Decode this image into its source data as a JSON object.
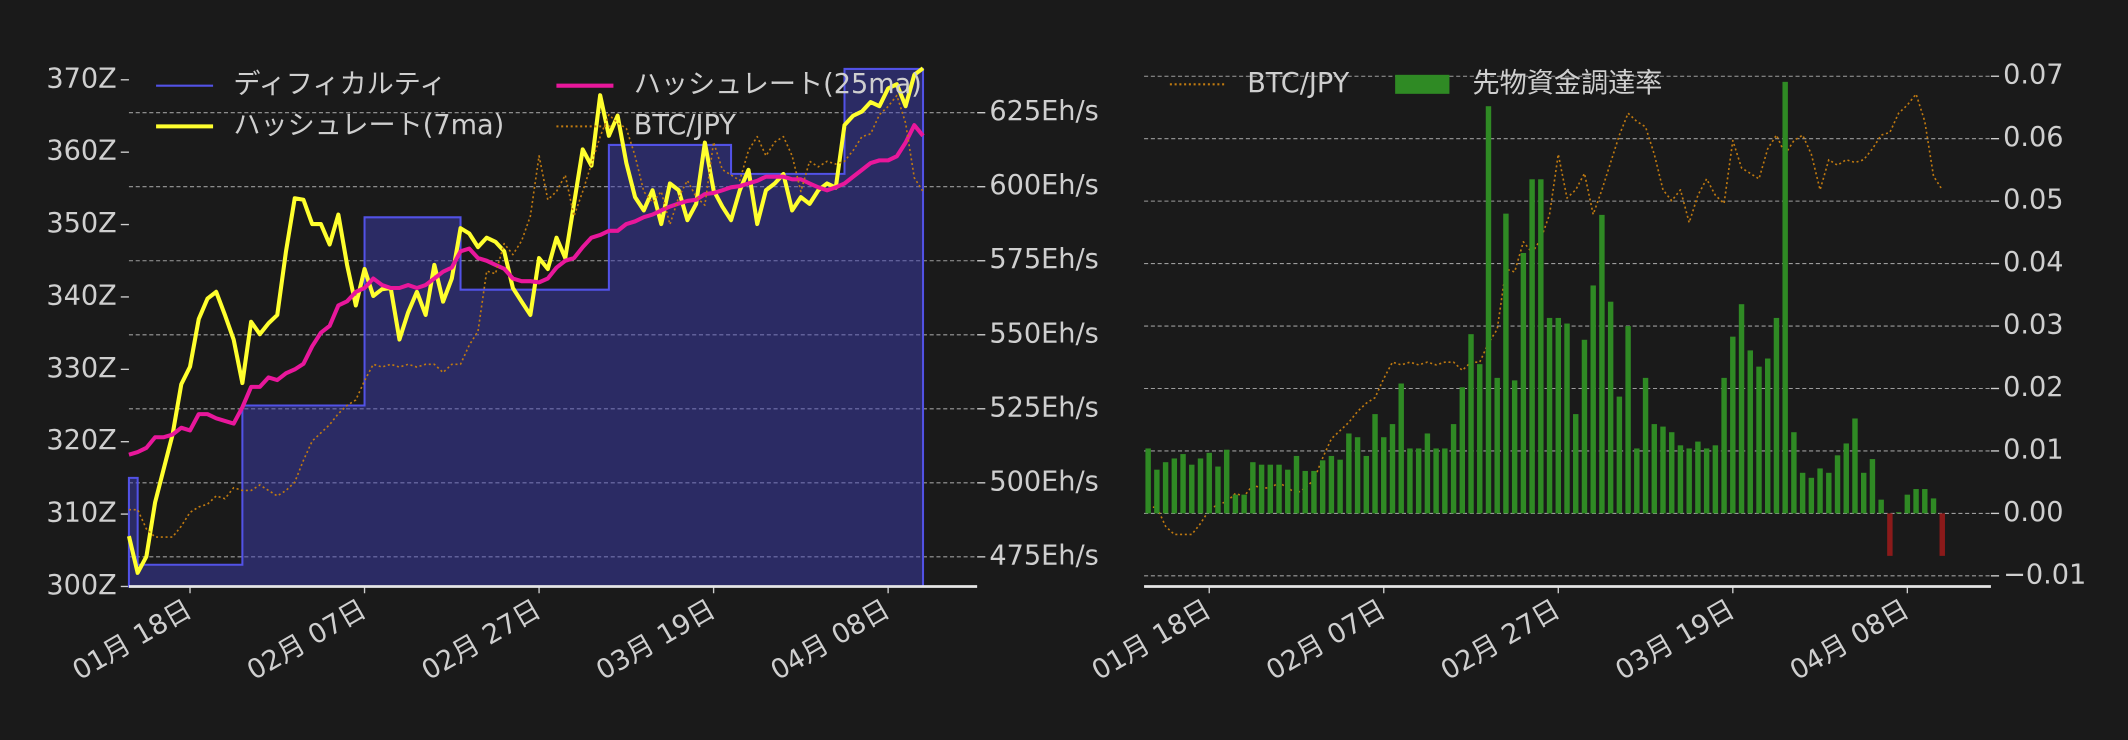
{
  "chart_data": [
    {
      "type": "line",
      "x": [
        "01月 11日",
        "01月 12日",
        "01月 13日",
        "01月 14日",
        "01月 15日",
        "01月 16日",
        "01月 17日",
        "01月 18日",
        "01月 19日",
        "01月 20日",
        "01月 21日",
        "01月 22日",
        "01月 23日",
        "01月 24日",
        "01月 25日",
        "01月 26日",
        "01月 27日",
        "01月 28日",
        "01月 29日",
        "01月 30日",
        "01月 31日",
        "02月 01日",
        "02月 02日",
        "02月 03日",
        "02月 04日",
        "02月 05日",
        "02月 06日",
        "02月 07日",
        "02月 08日",
        "02月 09日",
        "02月 10日",
        "02月 11日",
        "02月 12日",
        "02月 13日",
        "02月 14日",
        "02月 15日",
        "02月 16日",
        "02月 17日",
        "02月 18日",
        "02月 19日",
        "02月 20日",
        "02月 21日",
        "02月 22日",
        "02月 23日",
        "02月 24日",
        "02月 25日",
        "02月 26日",
        "02月 27日",
        "02月 28日",
        "03月 01日",
        "03月 02日",
        "03月 03日",
        "03月 04日",
        "03月 05日",
        "03月 06日",
        "03月 07日",
        "03月 08日",
        "03月 09日",
        "03月 10日",
        "03月 11日",
        "03月 12日",
        "03月 13日",
        "03月 14日",
        "03月 15日",
        "03月 16日",
        "03月 17日",
        "03月 18日",
        "03月 19日",
        "03月 20日",
        "03月 21日",
        "03月 22日",
        "03月 23日",
        "03月 24日",
        "03月 25日",
        "03月 26日",
        "03月 27日",
        "03月 28日",
        "03月 29日",
        "03月 30日",
        "03月 31日",
        "04月 01日",
        "04月 02日",
        "04月 03日",
        "04月 04日",
        "04月 05日",
        "04月 06日",
        "04月 07日",
        "04月 08日",
        "04月 09日",
        "04月 10日",
        "04月 11日",
        "04月 12日"
      ],
      "xticks": [
        "01月 18日",
        "02月 07日",
        "02月 27日",
        "03月 19日",
        "04月 08日"
      ],
      "ylim": [
        300,
        372
      ],
      "yticks": [
        {
          "value": 300,
          "label": "300Z"
        },
        {
          "value": 310,
          "label": "310Z"
        },
        {
          "value": 320,
          "label": "320Z"
        },
        {
          "value": 330,
          "label": "330Z"
        },
        {
          "value": 340,
          "label": "340Z"
        },
        {
          "value": 350,
          "label": "350Z"
        },
        {
          "value": 360,
          "label": "360Z"
        },
        {
          "value": 370,
          "label": "370Z"
        }
      ],
      "y_axis_side": "left",
      "y2lim": [
        465,
        641
      ],
      "y2ticks": [
        {
          "value": 475,
          "label": "475Eh/s"
        },
        {
          "value": 500,
          "label": "500Eh/s"
        },
        {
          "value": 525,
          "label": "525Eh/s"
        },
        {
          "value": 550,
          "label": "550Eh/s"
        },
        {
          "value": 575,
          "label": "575Eh/s"
        },
        {
          "value": 600,
          "label": "600Eh/s"
        },
        {
          "value": 625,
          "label": "625Eh/s"
        }
      ],
      "y3lim": [
        2100000,
        4000000
      ],
      "grid": "y2",
      "legend": "upper left",
      "legend_columns": 2,
      "series": [
        {
          "name": "ディフィカルティ",
          "mark": "step-area",
          "color": "#5252e6",
          "fill": "rgba(64,64,190,0.45)",
          "values": [
            315,
            303,
            303,
            303,
            303,
            303,
            303,
            303,
            303,
            303,
            303,
            303,
            303,
            325,
            325,
            325,
            325,
            325,
            325,
            325,
            325,
            325,
            325,
            325,
            325,
            325,
            325,
            351,
            351,
            351,
            351,
            351,
            351,
            351,
            351,
            351,
            351,
            351,
            341,
            341,
            341,
            341,
            341,
            341,
            341,
            341,
            341,
            341,
            341,
            341,
            341,
            341,
            341,
            341,
            341,
            361,
            361,
            361,
            361,
            361,
            361,
            361,
            361,
            361,
            361,
            361,
            361,
            361,
            361,
            357,
            357,
            357,
            357,
            357,
            357,
            357,
            357,
            357,
            357,
            357,
            357,
            357,
            371.5,
            371.5,
            371.5,
            371.5,
            371.5,
            371.5,
            371.5,
            371.5,
            371.5,
            371.5
          ]
        },
        {
          "name": "ハッシュレート(7ma)",
          "mark": "line",
          "axis": "y2",
          "color": "#ffff2e",
          "values": [
            482.0,
            469.6,
            475.1,
            493.4,
            504.9,
            516.3,
            533.3,
            539.2,
            555.3,
            562.2,
            564.5,
            556.7,
            548.4,
            533.7,
            554.4,
            550.2,
            553.9,
            556.7,
            578.2,
            596.1,
            595.6,
            587.4,
            587.4,
            580.5,
            590.6,
            573.6,
            559.9,
            572.2,
            563.1,
            565.4,
            565.8,
            548.4,
            557.6,
            564.5,
            556.7,
            573.6,
            561.2,
            569.0,
            586.0,
            584.2,
            579.6,
            582.8,
            581.4,
            578.2,
            565.8,
            561.2,
            556.7,
            575.9,
            572.2,
            582.8,
            575.9,
            594.2,
            612.6,
            607.1,
            630.9,
            617.2,
            624.0,
            608.0,
            596.5,
            592.0,
            598.8,
            587.4,
            601.1,
            598.8,
            588.7,
            594.2,
            614.9,
            598.8,
            593.3,
            588.7,
            598.8,
            605.7,
            587.4,
            598.8,
            601.1,
            604.3,
            592.0,
            596.5,
            594.2,
            598.8,
            601.1,
            599.7,
            620.8,
            624.0,
            625.4,
            628.6,
            627.2,
            633.2,
            634.6,
            627.2,
            637.8,
            640
          ]
        },
        {
          "name": "ハッシュレート(25ma)",
          "mark": "line",
          "axis": "y2",
          "color": "#e8179b",
          "values": [
            509.5,
            510.4,
            511.8,
            515.4,
            515.4,
            516.3,
            518.6,
            517.7,
            523.2,
            523.2,
            521.8,
            520.9,
            520.0,
            525.5,
            532.4,
            532.4,
            535.6,
            534.7,
            537.0,
            538.3,
            540.2,
            546.1,
            550.7,
            553.0,
            559.9,
            561.3,
            564.5,
            565.8,
            569.0,
            566.8,
            565.8,
            565.8,
            566.8,
            565.8,
            566.8,
            569.0,
            571.3,
            572.7,
            578.2,
            579.1,
            575.9,
            575.0,
            573.6,
            572.3,
            569.0,
            568.1,
            568.1,
            567.7,
            569.0,
            572.7,
            575.0,
            575.9,
            579.6,
            582.8,
            583.7,
            585.1,
            585.1,
            587.4,
            588.3,
            589.7,
            590.6,
            592.0,
            593.3,
            594.3,
            595.2,
            595.6,
            597.5,
            597.9,
            598.8,
            599.8,
            600.2,
            601.1,
            602.0,
            603.4,
            603.4,
            603.4,
            602.5,
            602.5,
            601.1,
            599.8,
            598.8,
            599.8,
            601.1,
            603.4,
            605.7,
            608.0,
            608.9,
            608.9,
            610.3,
            614.9,
            620.8,
            617.2
          ]
        },
        {
          "name": "BTC/JPY",
          "mark": "line",
          "dashed": true,
          "axis": "y3",
          "color": "#c07a10",
          "values": [
            2380000,
            2380000,
            2310000,
            2280000,
            2280000,
            2280000,
            2320000,
            2370000,
            2390000,
            2400000,
            2430000,
            2420000,
            2460000,
            2450000,
            2450000,
            2470000,
            2450000,
            2430000,
            2450000,
            2480000,
            2560000,
            2630000,
            2660000,
            2690000,
            2730000,
            2760000,
            2780000,
            2850000,
            2910000,
            2900000,
            2910000,
            2900000,
            2910000,
            2900000,
            2910000,
            2910000,
            2880000,
            2910000,
            2910000,
            2980000,
            3030000,
            3250000,
            3240000,
            3350000,
            3310000,
            3360000,
            3450000,
            3670000,
            3510000,
            3540000,
            3600000,
            3450000,
            3540000,
            3640000,
            3740000,
            3820000,
            3790000,
            3770000,
            3670000,
            3540000,
            3500000,
            3540000,
            3420000,
            3520000,
            3580000,
            3520000,
            3490000,
            3720000,
            3620000,
            3600000,
            3580000,
            3690000,
            3740000,
            3670000,
            3720000,
            3740000,
            3670000,
            3540000,
            3650000,
            3630000,
            3650000,
            3640000,
            3650000,
            3690000,
            3740000,
            3750000,
            3820000,
            3850000,
            3890000,
            3790000,
            3590000,
            3540000
          ]
        }
      ]
    },
    {
      "type": "bar",
      "x": [
        "01月 11日",
        "01月 12日",
        "01月 13日",
        "01月 14日",
        "01月 15日",
        "01月 16日",
        "01月 17日",
        "01月 18日",
        "01月 19日",
        "01月 20日",
        "01月 21日",
        "01月 22日",
        "01月 23日",
        "01月 24日",
        "01月 25日",
        "01月 26日",
        "01月 27日",
        "01月 28日",
        "01月 29日",
        "01月 30日",
        "01月 31日",
        "02月 01日",
        "02月 02日",
        "02月 03日",
        "02月 04日",
        "02月 05日",
        "02月 06日",
        "02月 07日",
        "02月 08日",
        "02月 09日",
        "02月 10日",
        "02月 11日",
        "02月 12日",
        "02月 13日",
        "02月 14日",
        "02月 15日",
        "02月 16日",
        "02月 17日",
        "02月 18日",
        "02月 19日",
        "02月 20日",
        "02月 21日",
        "02月 22日",
        "02月 23日",
        "02月 24日",
        "02月 25日",
        "02月 26日",
        "02月 27日",
        "02月 28日",
        "03月 01日",
        "03月 02日",
        "03月 03日",
        "03月 04日",
        "03月 05日",
        "03月 06日",
        "03月 07日",
        "03月 08日",
        "03月 09日",
        "03月 10日",
        "03月 11日",
        "03月 12日",
        "03月 13日",
        "03月 14日",
        "03月 15日",
        "03月 16日",
        "03月 17日",
        "03月 18日",
        "03月 19日",
        "03月 20日",
        "03月 21日",
        "03月 22日",
        "03月 23日",
        "03月 24日",
        "03月 25日",
        "03月 26日",
        "03月 27日",
        "03月 28日",
        "03月 29日",
        "03月 30日",
        "03月 31日",
        "04月 01日",
        "04月 02日",
        "04月 03日",
        "04月 04日",
        "04月 05日",
        "04月 06日",
        "04月 07日",
        "04月 08日",
        "04月 09日",
        "04月 10日",
        "04月 11日",
        "04月 12日"
      ],
      "xticks": [
        "01月 18日",
        "02月 07日",
        "02月 27日",
        "03月 19日",
        "04月 08日"
      ],
      "ylim": [
        -0.0117,
        0.0724
      ],
      "yticks": [
        {
          "value": -0.01,
          "label": "−0.01"
        },
        {
          "value": 0,
          "label": "0.00"
        },
        0.01,
        0.02,
        0.03,
        0.04,
        0.05,
        0.06,
        0.07
      ],
      "y_axis_side": "right",
      "y2lim": [
        2090000,
        4010000
      ],
      "grid": "y",
      "legend": "upper left",
      "legend_columns": 2,
      "series": [
        {
          "name": "BTC/JPY",
          "mark": "line",
          "dashed": true,
          "axis": "y2",
          "color": "#c07a10",
          "values": [
            2380000,
            2380000,
            2310000,
            2280000,
            2280000,
            2280000,
            2320000,
            2370000,
            2390000,
            2400000,
            2430000,
            2420000,
            2460000,
            2450000,
            2450000,
            2470000,
            2450000,
            2430000,
            2450000,
            2480000,
            2560000,
            2630000,
            2660000,
            2690000,
            2730000,
            2760000,
            2780000,
            2850000,
            2910000,
            2900000,
            2910000,
            2900000,
            2910000,
            2900000,
            2910000,
            2910000,
            2880000,
            2910000,
            2910000,
            2980000,
            3030000,
            3250000,
            3240000,
            3350000,
            3310000,
            3360000,
            3450000,
            3670000,
            3510000,
            3540000,
            3600000,
            3450000,
            3540000,
            3640000,
            3740000,
            3820000,
            3790000,
            3770000,
            3670000,
            3540000,
            3500000,
            3540000,
            3420000,
            3520000,
            3580000,
            3520000,
            3490000,
            3720000,
            3620000,
            3600000,
            3580000,
            3690000,
            3740000,
            3670000,
            3720000,
            3740000,
            3670000,
            3540000,
            3650000,
            3630000,
            3650000,
            3640000,
            3650000,
            3690000,
            3740000,
            3750000,
            3820000,
            3850000,
            3890000,
            3790000,
            3590000,
            3540000
          ]
        },
        {
          "name": "先物資金調達率",
          "mark": "bar",
          "color": "#2f8a24",
          "negative_color": "#8b1a1a",
          "values": [
            0.0104,
            0.007,
            0.0082,
            0.0088,
            0.0095,
            0.0078,
            0.0088,
            0.0097,
            0.0075,
            0.0102,
            0.003,
            0.003,
            0.0082,
            0.0078,
            0.0078,
            0.0078,
            0.007,
            0.0092,
            0.0068,
            0.0068,
            0.0085,
            0.0092,
            0.0086,
            0.0128,
            0.0122,
            0.0092,
            0.0159,
            0.0122,
            0.0143,
            0.0208,
            0.0104,
            0.0104,
            0.0128,
            0.0104,
            0.0104,
            0.0143,
            0.0202,
            0.0287,
            0.0239,
            0.0652,
            0.0217,
            0.048,
            0.0213,
            0.0417,
            0.0535,
            0.0535,
            0.0313,
            0.0313,
            0.0304,
            0.0159,
            0.0278,
            0.0365,
            0.0478,
            0.0339,
            0.0187,
            0.03,
            0.0104,
            0.0217,
            0.0143,
            0.0139,
            0.013,
            0.0109,
            0.0104,
            0.0115,
            0.0104,
            0.0109,
            0.0217,
            0.0283,
            0.0335,
            0.0261,
            0.0235,
            0.0248,
            0.0313,
            0.0691,
            0.013,
            0.0065,
            0.0057,
            0.0072,
            0.0065,
            0.0093,
            0.0112,
            0.0152,
            0.0065,
            0.0087,
            0.0022,
            -0.0068,
            0.0002,
            0.003,
            0.0039,
            0.0039,
            0.0024,
            -0.0068
          ]
        }
      ]
    }
  ]
}
